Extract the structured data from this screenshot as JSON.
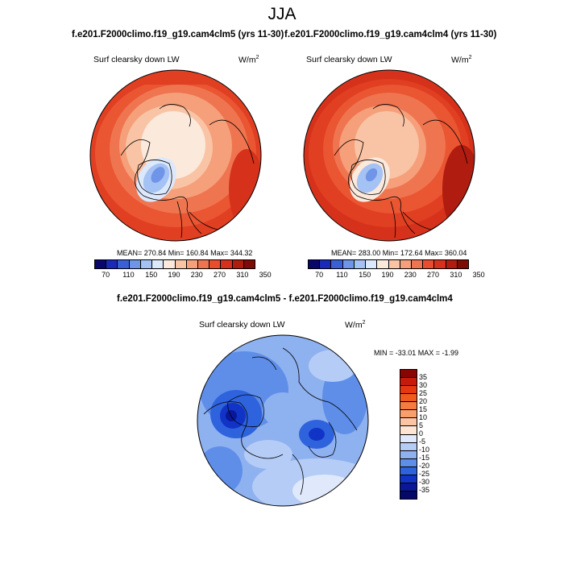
{
  "title": "JJA",
  "panels": {
    "left": {
      "subtitle": "f.e201.F2000climo.f19_g19.cam4clm5 (yrs 11-30)",
      "variable": "Surf clearsky down LW",
      "units": "W/m",
      "units_exp": "2",
      "stats": "MEAN= 270.84  Min= 160.84  Max= 344.32"
    },
    "right": {
      "subtitle": "f.e201.F2000climo.f19_g19.cam4clm4 (yrs 11-30)",
      "variable": "Surf clearsky down LW",
      "units": "W/m",
      "units_exp": "2",
      "stats": "MEAN= 283.00  Min= 172.64  Max= 360.04"
    },
    "diff": {
      "subtitle": "f.e201.F2000climo.f19_g19.cam4clm5 - f.e201.F2000climo.f19_g19.cam4clm4",
      "variable": "Surf clearsky down LW",
      "units": "W/m",
      "units_exp": "2",
      "stats": "MIN = -33.01 MAX =  -1.99"
    }
  },
  "colorbar_abs": {
    "labels": [
      "70",
      "110",
      "150",
      "190",
      "230",
      "270",
      "310",
      "350"
    ],
    "colors": [
      "#08076a",
      "#1a29b8",
      "#3c5fd6",
      "#6f94e8",
      "#a5c2f4",
      "#dce8fb",
      "#fbe9dc",
      "#f9c4a5",
      "#f5a07a",
      "#ef7550",
      "#e84e2e",
      "#d6321b",
      "#b01c10",
      "#7d0b07"
    ]
  },
  "colorbar_diff": {
    "labels": [
      "35",
      "30",
      "25",
      "20",
      "15",
      "10",
      "5",
      "0",
      "-5",
      "-10",
      "-15",
      "-20",
      "-25",
      "-30",
      "-35"
    ],
    "colors": [
      "#8a0404",
      "#c51a0c",
      "#e6380f",
      "#f05a1d",
      "#f57c3e",
      "#f99f6c",
      "#fbc4a3",
      "#fde4d3",
      "#dfe9fb",
      "#b5ccf6",
      "#8eb1f0",
      "#5f8ee9",
      "#2f63dd",
      "#1134c6",
      "#0a1799",
      "#060868"
    ]
  }
}
